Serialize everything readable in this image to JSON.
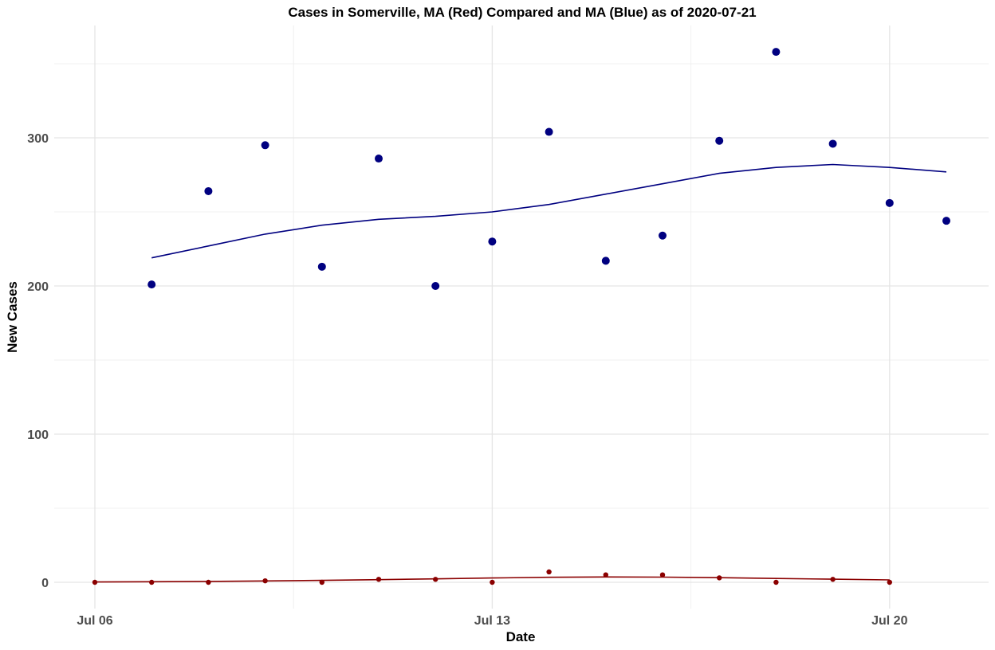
{
  "chart_data": {
    "type": "scatter",
    "title": "Cases in Somerville, MA (Red) Compared and MA (Blue) as of 2020-07-21",
    "xlabel": "Date",
    "ylabel": "New Cases",
    "x_ticks": [
      "Jul 06",
      "Jul 13",
      "Jul 20"
    ],
    "y_ticks": [
      "0",
      "100",
      "200",
      "300"
    ],
    "xlim": [
      "2020-07-06",
      "2020-07-21"
    ],
    "ylim": [
      -15,
      370
    ],
    "grid": true,
    "legend": "none",
    "series": [
      {
        "color": "#000080",
        "points": [
          {
            "x": "2020-07-07",
            "y": 201
          },
          {
            "x": "2020-07-08",
            "y": 264
          },
          {
            "x": "2020-07-09",
            "y": 295
          },
          {
            "x": "2020-07-10",
            "y": 213
          },
          {
            "x": "2020-07-11",
            "y": 286
          },
          {
            "x": "2020-07-12",
            "y": 200
          },
          {
            "x": "2020-07-13",
            "y": 230
          },
          {
            "x": "2020-07-14",
            "y": 304
          },
          {
            "x": "2020-07-15",
            "y": 217
          },
          {
            "x": "2020-07-16",
            "y": 234
          },
          {
            "x": "2020-07-17",
            "y": 298
          },
          {
            "x": "2020-07-18",
            "y": 358
          },
          {
            "x": "2020-07-19",
            "y": 296
          },
          {
            "x": "2020-07-20",
            "y": 256
          },
          {
            "x": "2020-07-21",
            "y": 244
          }
        ],
        "trend": [
          {
            "x": "2020-07-07",
            "y": 219
          },
          {
            "x": "2020-07-08",
            "y": 227
          },
          {
            "x": "2020-07-09",
            "y": 235
          },
          {
            "x": "2020-07-10",
            "y": 241
          },
          {
            "x": "2020-07-11",
            "y": 245
          },
          {
            "x": "2020-07-12",
            "y": 247
          },
          {
            "x": "2020-07-13",
            "y": 250
          },
          {
            "x": "2020-07-14",
            "y": 255
          },
          {
            "x": "2020-07-15",
            "y": 262
          },
          {
            "x": "2020-07-16",
            "y": 269
          },
          {
            "x": "2020-07-17",
            "y": 276
          },
          {
            "x": "2020-07-18",
            "y": 280
          },
          {
            "x": "2020-07-19",
            "y": 282
          },
          {
            "x": "2020-07-20",
            "y": 280
          },
          {
            "x": "2020-07-21",
            "y": 277
          }
        ]
      },
      {
        "color": "#8b0000",
        "points": [
          {
            "x": "2020-07-06",
            "y": 0
          },
          {
            "x": "2020-07-07",
            "y": 0
          },
          {
            "x": "2020-07-08",
            "y": 0
          },
          {
            "x": "2020-07-09",
            "y": 1
          },
          {
            "x": "2020-07-10",
            "y": 0
          },
          {
            "x": "2020-07-11",
            "y": 2
          },
          {
            "x": "2020-07-12",
            "y": 2
          },
          {
            "x": "2020-07-13",
            "y": 0
          },
          {
            "x": "2020-07-14",
            "y": 7
          },
          {
            "x": "2020-07-15",
            "y": 5
          },
          {
            "x": "2020-07-16",
            "y": 5
          },
          {
            "x": "2020-07-17",
            "y": 3
          },
          {
            "x": "2020-07-18",
            "y": 0
          },
          {
            "x": "2020-07-19",
            "y": 2
          },
          {
            "x": "2020-07-20",
            "y": 0
          }
        ],
        "trend": [
          {
            "x": "2020-07-06",
            "y": 0.2
          },
          {
            "x": "2020-07-07",
            "y": 0.4
          },
          {
            "x": "2020-07-08",
            "y": 0.6
          },
          {
            "x": "2020-07-09",
            "y": 0.9
          },
          {
            "x": "2020-07-10",
            "y": 1.3
          },
          {
            "x": "2020-07-11",
            "y": 1.8
          },
          {
            "x": "2020-07-12",
            "y": 2.3
          },
          {
            "x": "2020-07-13",
            "y": 2.9
          },
          {
            "x": "2020-07-14",
            "y": 3.4
          },
          {
            "x": "2020-07-15",
            "y": 3.6
          },
          {
            "x": "2020-07-16",
            "y": 3.5
          },
          {
            "x": "2020-07-17",
            "y": 3.1
          },
          {
            "x": "2020-07-18",
            "y": 2.6
          },
          {
            "x": "2020-07-19",
            "y": 2.1
          },
          {
            "x": "2020-07-20",
            "y": 1.6
          }
        ]
      }
    ]
  }
}
